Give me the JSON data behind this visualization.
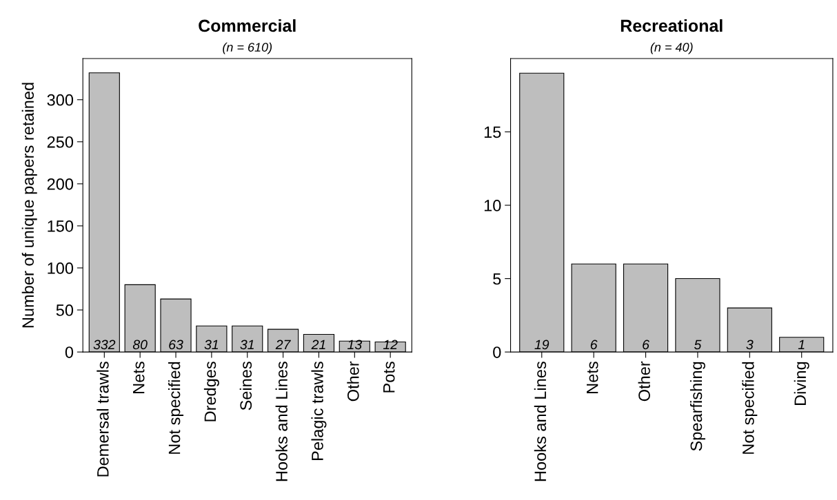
{
  "chart_data": [
    {
      "type": "bar",
      "title": "Commercial",
      "subtitle": "(n = 610)",
      "ylabel": "Number of unique papers retained",
      "categories": [
        "Demersal trawls",
        "Nets",
        "Not specified",
        "Dredges",
        "Seines",
        "Hooks and Lines",
        "Pelagic trawls",
        "Other",
        "Pots"
      ],
      "values": [
        332,
        80,
        63,
        31,
        31,
        27,
        21,
        13,
        12
      ],
      "color": "#bebebe",
      "ylim": [
        0,
        349
      ],
      "yticks": [
        0,
        50,
        100,
        150,
        200,
        250,
        300
      ],
      "grid": false,
      "data_labels": true
    },
    {
      "type": "bar",
      "title": "Recreational",
      "subtitle": "(n = 40)",
      "categories": [
        "Hooks and Lines",
        "Nets",
        "Other",
        "Spearfishing",
        "Not specified",
        "Diving"
      ],
      "values": [
        19,
        6,
        6,
        5,
        3,
        1
      ],
      "color": "#bebebe",
      "ylim": [
        0,
        20
      ],
      "yticks": [
        0,
        5,
        10,
        15
      ],
      "grid": false,
      "data_labels": true
    }
  ]
}
